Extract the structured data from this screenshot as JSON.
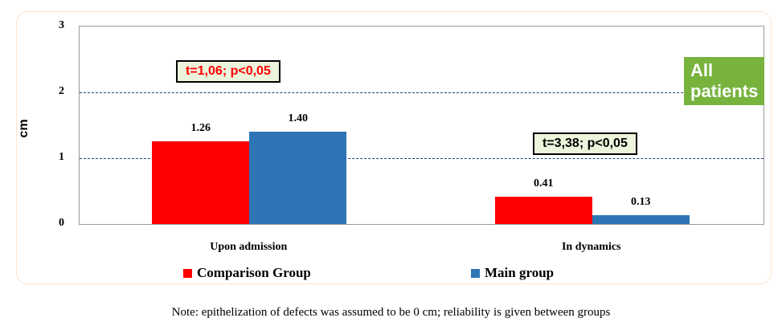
{
  "chart_data": {
    "type": "bar",
    "title": "All patients",
    "ylabel": "cm",
    "xlabel": "",
    "ylim": [
      0,
      3
    ],
    "yticks": [
      "0",
      "1",
      "2",
      "3"
    ],
    "categories": [
      "Upon admission",
      "In dynamics"
    ],
    "series": [
      {
        "name": "Comparison Group",
        "color": "#ff0000",
        "values": [
          1.26,
          0.41
        ],
        "labels": [
          "1.26",
          "0.41"
        ]
      },
      {
        "name": "Main group",
        "color": "#2e75b6",
        "values": [
          1.4,
          0.13
        ],
        "labels": [
          "1.40",
          "0.13"
        ]
      }
    ],
    "grid": "horizontal dashed",
    "legend": "bottom",
    "annotations": [
      {
        "text": "t=1,06; p<0,05",
        "color": "#ff0000"
      },
      {
        "text": "t=3,38; p<0,05",
        "color": "#000000"
      }
    ]
  },
  "note": "Note: epithelization of defects was assumed to be 0 cm; reliability is given between groups"
}
